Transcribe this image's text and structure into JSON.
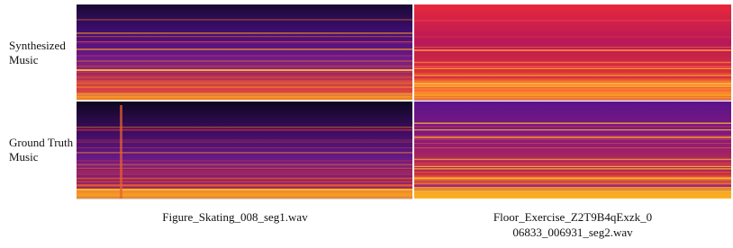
{
  "rows": [
    {
      "lines": [
        "Synthesized",
        "Music"
      ]
    },
    {
      "lines": [
        "Ground Truth",
        "Music"
      ]
    }
  ],
  "columns": [
    {
      "lines": [
        "Figure_Skating_008_seg1.wav"
      ]
    },
    {
      "lines": [
        "Floor_Exercise_Z2T9B4qExzk_0",
        "06833_006931_seg2.wav"
      ]
    }
  ]
}
